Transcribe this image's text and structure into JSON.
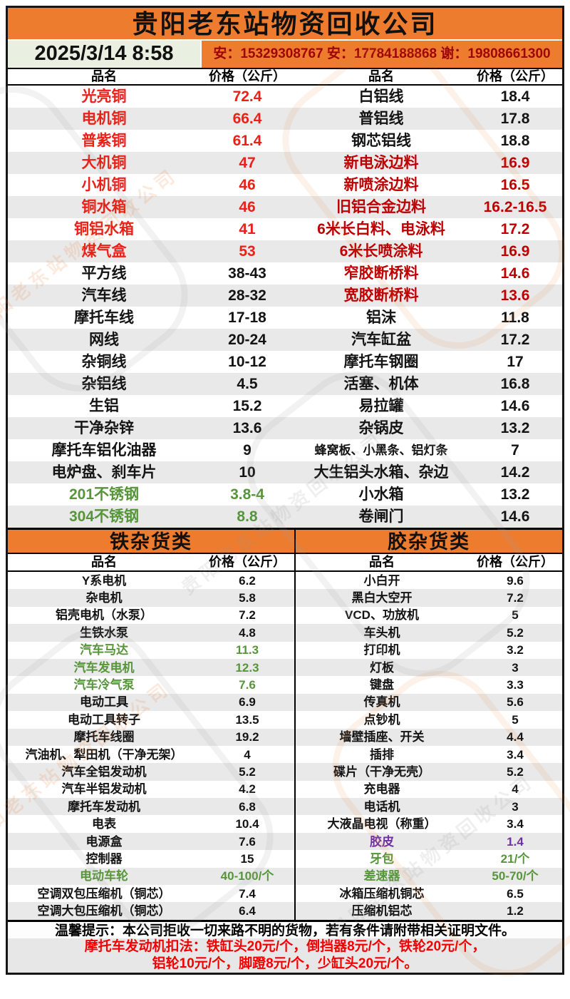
{
  "header": {
    "title": "贵阳老东站物资回收公司",
    "datetime": "2025/3/14 8:58",
    "contacts": "安：15329308767 安：17784188868 谢：19808661300"
  },
  "columns": {
    "item": "品名",
    "price": "价格（公斤）"
  },
  "sections": {
    "iron": "铁杂货类",
    "plastic": "胶杂货类"
  },
  "main_table": {
    "left": [
      {
        "n": "光亮铜",
        "p": "72.4",
        "c": "red"
      },
      {
        "n": "电机铜",
        "p": "66.4",
        "c": "red"
      },
      {
        "n": "普紫铜",
        "p": "61.4",
        "c": "red"
      },
      {
        "n": "大机铜",
        "p": "47",
        "c": "red"
      },
      {
        "n": "小机铜",
        "p": "46",
        "c": "red"
      },
      {
        "n": "铜水箱",
        "p": "46",
        "c": "red"
      },
      {
        "n": "铜铝水箱",
        "p": "41",
        "c": "red"
      },
      {
        "n": "煤气盒",
        "p": "53",
        "c": "red"
      },
      {
        "n": "平方线",
        "p": "38-43",
        "c": ""
      },
      {
        "n": "汽车线",
        "p": "28-32",
        "c": ""
      },
      {
        "n": "摩托车线",
        "p": "17-18",
        "c": ""
      },
      {
        "n": "网线",
        "p": "20-24",
        "c": ""
      },
      {
        "n": "杂铜线",
        "p": "10-12",
        "c": ""
      },
      {
        "n": "杂铝线",
        "p": "4.5",
        "c": ""
      },
      {
        "n": "生铝",
        "p": "15.2",
        "c": ""
      },
      {
        "n": "干净杂锌",
        "p": "13.6",
        "c": ""
      },
      {
        "n": "摩托车铝化油器",
        "p": "9",
        "c": ""
      },
      {
        "n": "电炉盘、刹车片",
        "p": "10",
        "c": ""
      },
      {
        "n": "201不锈钢",
        "p": "3.8-4",
        "c": "green"
      },
      {
        "n": "304不锈钢",
        "p": "8.8",
        "c": "green"
      }
    ],
    "right": [
      {
        "n": "白铝线",
        "p": "18.4",
        "c": ""
      },
      {
        "n": "普铝线",
        "p": "17.8",
        "c": ""
      },
      {
        "n": "钢芯铝线",
        "p": "18.8",
        "c": ""
      },
      {
        "n": "新电泳边料",
        "p": "16.9",
        "c": "dark"
      },
      {
        "n": "新喷涂边料",
        "p": "16.5",
        "c": "dark"
      },
      {
        "n": "旧铝合金边料",
        "p": "16.2-16.5",
        "c": "dark"
      },
      {
        "n": "6米长白料、电泳料",
        "p": "17.2",
        "c": "dark"
      },
      {
        "n": "6米长喷涂料",
        "p": "16.9",
        "c": "dark"
      },
      {
        "n": "窄胶断桥料",
        "p": "14.6",
        "c": "dark"
      },
      {
        "n": "宽胶断桥料",
        "p": "13.6",
        "c": "dark"
      },
      {
        "n": "铝沫",
        "p": "11.8",
        "c": ""
      },
      {
        "n": "汽车缸盆",
        "p": "17.2",
        "c": ""
      },
      {
        "n": "摩托车钢圈",
        "p": "17",
        "c": ""
      },
      {
        "n": "活塞、机体",
        "p": "16.8",
        "c": ""
      },
      {
        "n": "易拉罐",
        "p": "14.6",
        "c": ""
      },
      {
        "n": "杂锅皮",
        "p": "13.2",
        "c": ""
      },
      {
        "n": "蜂窝板、小黑条、铝灯条",
        "p": "7",
        "c": ""
      },
      {
        "n": "大生铝头水箱、杂边",
        "p": "14.2",
        "c": ""
      },
      {
        "n": "小水箱",
        "p": "13.2",
        "c": ""
      },
      {
        "n": "卷闸门",
        "p": "14.6",
        "c": ""
      }
    ]
  },
  "iron_table": [
    {
      "n": "Y系电机",
      "p": "6.2",
      "c": ""
    },
    {
      "n": "杂电机",
      "p": "5.8",
      "c": ""
    },
    {
      "n": "铝壳电机（水泵）",
      "p": "7.2",
      "c": ""
    },
    {
      "n": "生铁水泵",
      "p": "4.8",
      "c": ""
    },
    {
      "n": "汽车马达",
      "p": "11.3",
      "c": "green"
    },
    {
      "n": "汽车发电机",
      "p": "12.3",
      "c": "green"
    },
    {
      "n": "汽车冷气泵",
      "p": "7.6",
      "c": "green"
    },
    {
      "n": "电动工具",
      "p": "6.9",
      "c": ""
    },
    {
      "n": "电动工具转子",
      "p": "13.5",
      "c": ""
    },
    {
      "n": "摩托车线圈",
      "p": "19.2",
      "c": ""
    },
    {
      "n": "汽油机、犁田机（干净无架）",
      "p": "4",
      "c": ""
    },
    {
      "n": "汽车全铝发动机",
      "p": "5.2",
      "c": ""
    },
    {
      "n": "汽车半铝发动机",
      "p": "4.2",
      "c": ""
    },
    {
      "n": "摩托车发动机",
      "p": "6.8",
      "c": ""
    },
    {
      "n": "电表",
      "p": "10.4",
      "c": ""
    },
    {
      "n": "电源盒",
      "p": "7.6",
      "c": ""
    },
    {
      "n": "控制器",
      "p": "15",
      "c": ""
    },
    {
      "n": "电动车轮",
      "p": "40-100/个",
      "c": "green"
    },
    {
      "n": "空调双包压缩机（铜芯）",
      "p": "7.4",
      "c": ""
    },
    {
      "n": "空调大包压缩机（铜芯）",
      "p": "6.4",
      "c": ""
    }
  ],
  "plastic_table": [
    {
      "n": "小白开",
      "p": "9.6",
      "c": ""
    },
    {
      "n": "黑白大空开",
      "p": "7.2",
      "c": ""
    },
    {
      "n": "VCD、功放机",
      "p": "5",
      "c": ""
    },
    {
      "n": "车头机",
      "p": "5.2",
      "c": ""
    },
    {
      "n": "打印机",
      "p": "3.2",
      "c": ""
    },
    {
      "n": "灯板",
      "p": "3",
      "c": ""
    },
    {
      "n": "键盘",
      "p": "3.3",
      "c": ""
    },
    {
      "n": "传真机",
      "p": "5.6",
      "c": ""
    },
    {
      "n": "点钞机",
      "p": "5",
      "c": ""
    },
    {
      "n": "墙壁插座、开关",
      "p": "4.4",
      "c": ""
    },
    {
      "n": "插排",
      "p": "3.4",
      "c": ""
    },
    {
      "n": "碟片（干净无壳）",
      "p": "5.2",
      "c": ""
    },
    {
      "n": "充电器",
      "p": "4",
      "c": ""
    },
    {
      "n": "电话机",
      "p": "3",
      "c": ""
    },
    {
      "n": "大液晶电视（称重）",
      "p": "3.4",
      "c": ""
    },
    {
      "n": "胶皮",
      "p": "1.4",
      "c": "purple"
    },
    {
      "n": "牙包",
      "p": "21/个",
      "c": "green"
    },
    {
      "n": "差速器",
      "p": "50-70/个",
      "c": "green"
    },
    {
      "n": "冰箱压缩机铜芯",
      "p": "6.5",
      "c": ""
    },
    {
      "n": "压缩机铝芯",
      "p": "1.2",
      "c": ""
    }
  ],
  "footer": {
    "notice": "温馨提示：本公司拒收一切来路不明的货物，若有条件请附带相关证明文件。",
    "deduction_line1": "摩托车发动机扣法：铁缸头20元/个，倒挡器8元/个，铁轮20元/个，",
    "deduction_line2": "铝轮10元/个，脚蹬8元/个，少缸头20元/个。"
  },
  "watermark": "贵阳老东站物资回收公司",
  "colors": {
    "accent_orange": "#ED7C2F",
    "date_bg": "#e9f0e1",
    "stripe_gray": "#e9e9e9",
    "bright_red": "#e92118",
    "dark_red": "#bf0000",
    "green": "#57953a",
    "purple": "#7030A0",
    "phone_red": "#9e0606",
    "footer_red": "#f40000"
  }
}
